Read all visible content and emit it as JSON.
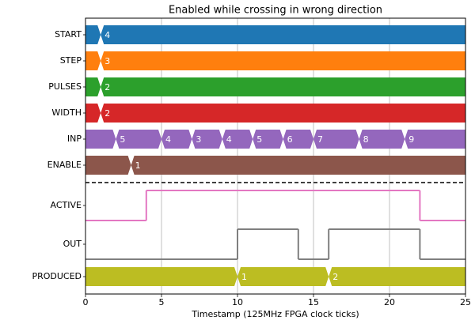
{
  "chart_data": {
    "type": "timing",
    "title": "Enabled while crossing in wrong direction",
    "xlabel": "Timestamp (125MHz FPGA clock ticks)",
    "xlim": [
      0,
      25
    ],
    "xticks": [
      0,
      5,
      10,
      15,
      20,
      25
    ],
    "grid": true,
    "signals": [
      {
        "name": "START",
        "kind": "bus",
        "color": "#1f77b4",
        "x": [
          1
        ],
        "values": [
          4
        ]
      },
      {
        "name": "STEP",
        "kind": "bus",
        "color": "#ff7f0e",
        "x": [
          1
        ],
        "values": [
          3
        ]
      },
      {
        "name": "PULSES",
        "kind": "bus",
        "color": "#2ca02c",
        "x": [
          1
        ],
        "values": [
          2
        ]
      },
      {
        "name": "WIDTH",
        "kind": "bus",
        "color": "#d62728",
        "x": [
          1
        ],
        "values": [
          2
        ]
      },
      {
        "name": "INP",
        "kind": "bus",
        "color": "#9467bd",
        "x": [
          2,
          5,
          7,
          9,
          11,
          13,
          15,
          18,
          21
        ],
        "values": [
          5,
          4,
          3,
          4,
          5,
          6,
          7,
          8,
          9
        ]
      },
      {
        "name": "ENABLE",
        "kind": "bus",
        "color": "#8c564b",
        "x": [
          3
        ],
        "values": [
          1
        ]
      },
      {
        "name": "ACTIVE",
        "kind": "bit",
        "color": "#e377c2",
        "x": [
          0,
          4,
          22
        ],
        "values": [
          0,
          1,
          0
        ]
      },
      {
        "name": "OUT",
        "kind": "bit",
        "color": "#7f7f7f",
        "x": [
          0,
          10,
          14,
          16,
          22
        ],
        "values": [
          0,
          1,
          0,
          1,
          0
        ]
      },
      {
        "name": "PRODUCED",
        "kind": "bus",
        "color": "#bcbd22",
        "x": [
          10,
          16
        ],
        "values": [
          1,
          2
        ]
      }
    ]
  }
}
